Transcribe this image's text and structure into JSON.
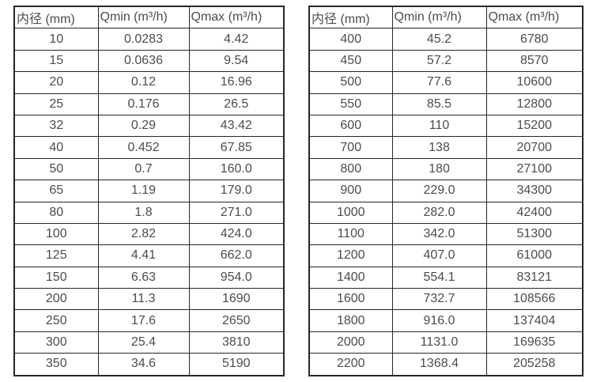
{
  "colors": {
    "background": "#ffffff",
    "table_border": "#262626",
    "text": "#4c4c4c"
  },
  "chart_data": [
    {
      "type": "table",
      "title": "",
      "columns": [
        "内径 (mm)",
        "Qmin (m³/h)",
        "Qmax (m³/h)"
      ],
      "rows": [
        [
          "10",
          "0.0283",
          "4.42"
        ],
        [
          "15",
          "0.0636",
          "9.54"
        ],
        [
          "20",
          "0.12",
          "16.96"
        ],
        [
          "25",
          "0.176",
          "26.5"
        ],
        [
          "32",
          "0.29",
          "43.42"
        ],
        [
          "40",
          "0.452",
          "67.85"
        ],
        [
          "50",
          "0.7",
          "160.0"
        ],
        [
          "65",
          "1.19",
          "179.0"
        ],
        [
          "80",
          "1.8",
          "271.0"
        ],
        [
          "100",
          "2.82",
          "424.0"
        ],
        [
          "125",
          "4.41",
          "662.0"
        ],
        [
          "150",
          "6.63",
          "954.0"
        ],
        [
          "200",
          "11.3",
          "1690"
        ],
        [
          "250",
          "17.6",
          "2650"
        ],
        [
          "300",
          "25.4",
          "3810"
        ],
        [
          "350",
          "34.6",
          "5190"
        ]
      ]
    },
    {
      "type": "table",
      "title": "",
      "columns": [
        "内径 (mm)",
        "Qmin (m³/h)",
        "Qmax (m³/h)"
      ],
      "rows": [
        [
          "400",
          "45.2",
          "6780"
        ],
        [
          "450",
          "57.2",
          "8570"
        ],
        [
          "500",
          "77.6",
          "10600"
        ],
        [
          "550",
          "85.5",
          "12800"
        ],
        [
          "600",
          "110",
          "15200"
        ],
        [
          "700",
          "138",
          "20700"
        ],
        [
          "800",
          "180",
          "27100"
        ],
        [
          "900",
          "229.0",
          "34300"
        ],
        [
          "1000",
          "282.0",
          "42400"
        ],
        [
          "1100",
          "342.0",
          "51300"
        ],
        [
          "1200",
          "407.0",
          "61000"
        ],
        [
          "1400",
          "554.1",
          "83121"
        ],
        [
          "1600",
          "732.7",
          "108566"
        ],
        [
          "1800",
          "916.0",
          "137404"
        ],
        [
          "2000",
          "1131.0",
          "169635"
        ],
        [
          "2200",
          "1368.4",
          "205258"
        ]
      ]
    }
  ]
}
